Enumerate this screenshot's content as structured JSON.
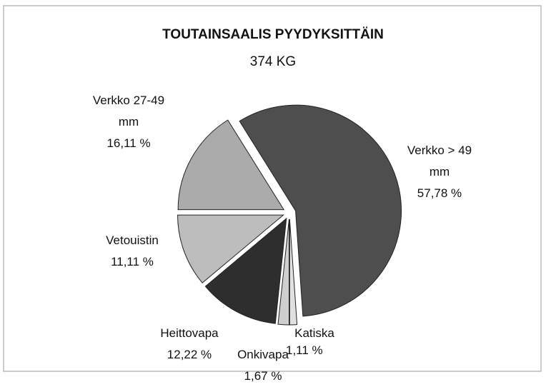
{
  "chart_data": {
    "type": "pie",
    "title": "TOUTAINSAALIS PYYDYKSITTÄIN",
    "subtitle": "374 KG",
    "categories": [
      "Verkko > 49 mm",
      "Katiska",
      "Onkivapa",
      "Heittovapa",
      "Vetouistin",
      "Verkko 27-49 mm"
    ],
    "values": [
      57.78,
      1.11,
      1.67,
      12.22,
      11.11,
      16.11
    ],
    "value_labels": [
      "57,78 %",
      "1,11 %",
      "1,67 %",
      "12,22 %",
      "11,11 %",
      "16,11 %"
    ],
    "colors": [
      "#4e4e4e",
      "#e0e0e0",
      "#cfcfcf",
      "#2e2e2e",
      "#bdbdbd",
      "#ababab"
    ]
  }
}
